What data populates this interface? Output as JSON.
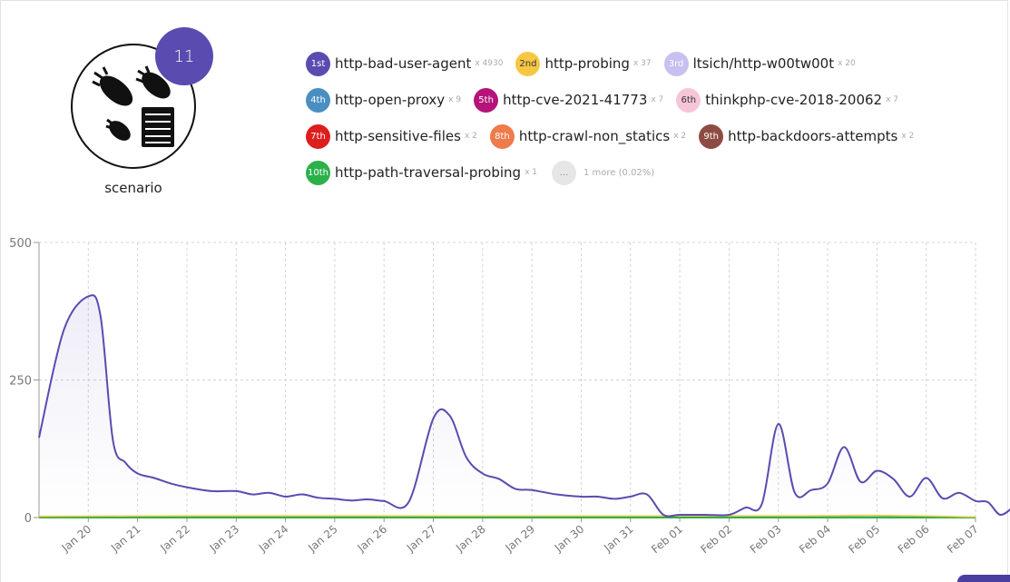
{
  "scenario": {
    "count": "11",
    "label": "scenario",
    "icon": "bombs-and-server-icon"
  },
  "legend": [
    {
      "rank": "1st",
      "name": "http-bad-user-agent",
      "count": "x 4930",
      "color": "#5a4bb0"
    },
    {
      "rank": "2nd",
      "name": "http-probing",
      "count": "x 37",
      "color": "#f7c744"
    },
    {
      "rank": "3rd",
      "name": "ltsich/http-w00tw00t",
      "count": "x 20",
      "color": "#c8c0f0"
    },
    {
      "rank": "4th",
      "name": "http-open-proxy",
      "count": "x 9",
      "color": "#4a8fc2"
    },
    {
      "rank": "5th",
      "name": "http-cve-2021-41773",
      "count": "x 7",
      "color": "#b5137a"
    },
    {
      "rank": "6th",
      "name": "thinkphp-cve-2018-20062",
      "count": "x 7",
      "color": "#f7c5d8"
    },
    {
      "rank": "7th",
      "name": "http-sensitive-files",
      "count": "x 2",
      "color": "#dd1e1e"
    },
    {
      "rank": "8th",
      "name": "http-crawl-non_statics",
      "count": "x 2",
      "color": "#ef7a4a"
    },
    {
      "rank": "9th",
      "name": "http-backdoors-attempts",
      "count": "x 2",
      "color": "#8c4c44"
    },
    {
      "rank": "10th",
      "name": "http-path-traversal-probing",
      "count": "x 1",
      "color": "#2bb14a"
    }
  ],
  "more": {
    "dot": "...",
    "text": "1 more (0.02%)"
  },
  "chart_data": {
    "type": "area",
    "yticks": [
      "500",
      "250",
      "0"
    ],
    "ylim": [
      0,
      500
    ],
    "xlim": [
      "2024-01-19",
      "2024-02-07"
    ],
    "categories": [
      "Jan 20",
      "Jan 21",
      "Jan 22",
      "Jan 23",
      "Jan 24",
      "Jan 25",
      "Jan 26",
      "Jan 27",
      "Jan 28",
      "Jan 29",
      "Jan 30",
      "Jan 31",
      "Feb 01",
      "Feb 02",
      "Feb 03",
      "Feb 04",
      "Feb 05",
      "Feb 06",
      "Feb 07"
    ],
    "grid": true,
    "series": [
      {
        "name": "http-bad-user-agent",
        "color": "#5a4bb0",
        "points": [
          [
            "2024-01-19",
            145
          ],
          [
            "2024-01-19",
            340
          ],
          [
            "2024-01-20",
            402
          ],
          [
            "2024-01-20",
            365
          ],
          [
            "2024-01-20",
            140
          ],
          [
            "2024-01-20",
            100
          ],
          [
            "2024-01-21",
            80
          ],
          [
            "2024-01-21",
            72
          ],
          [
            "2024-01-21",
            62
          ],
          [
            "2024-01-22",
            55
          ],
          [
            "2024-01-22",
            48
          ],
          [
            "2024-01-23",
            48
          ],
          [
            "2024-01-23",
            42
          ],
          [
            "2024-01-23",
            45
          ],
          [
            "2024-01-24",
            38
          ],
          [
            "2024-01-24",
            42
          ],
          [
            "2024-01-24",
            36
          ],
          [
            "2024-01-25",
            34
          ],
          [
            "2024-01-25",
            31
          ],
          [
            "2024-01-25",
            33
          ],
          [
            "2024-01-26",
            30
          ],
          [
            "2024-01-26",
            28
          ],
          [
            "2024-01-27",
            180
          ],
          [
            "2024-01-27",
            185
          ],
          [
            "2024-01-27",
            110
          ],
          [
            "2024-01-28",
            80
          ],
          [
            "2024-01-28",
            70
          ],
          [
            "2024-01-28",
            52
          ],
          [
            "2024-01-29",
            50
          ],
          [
            "2024-01-29",
            42
          ],
          [
            "2024-01-30",
            38
          ],
          [
            "2024-01-30",
            38
          ],
          [
            "2024-01-30",
            34
          ],
          [
            "2024-01-31",
            38
          ],
          [
            "2024-01-31",
            42
          ],
          [
            "2024-01-31",
            5
          ],
          [
            "2024-02-01",
            5
          ],
          [
            "2024-02-01",
            5
          ],
          [
            "2024-02-02",
            5
          ],
          [
            "2024-02-02",
            18
          ],
          [
            "2024-02-02",
            25
          ],
          [
            "2024-02-03",
            170
          ],
          [
            "2024-02-03",
            45
          ],
          [
            "2024-02-03",
            50
          ],
          [
            "2024-02-04",
            62
          ],
          [
            "2024-02-04",
            128
          ],
          [
            "2024-02-04",
            65
          ],
          [
            "2024-02-05",
            85
          ],
          [
            "2024-02-05",
            70
          ],
          [
            "2024-02-05",
            38
          ],
          [
            "2024-02-06",
            72
          ],
          [
            "2024-02-06",
            35
          ],
          [
            "2024-02-06",
            45
          ],
          [
            "2024-02-07",
            30
          ],
          [
            "2024-02-07",
            28
          ],
          [
            "2024-02-07",
            5
          ],
          [
            "2024-02-07",
            18
          ]
        ]
      },
      {
        "name": "http-probing",
        "color": "#f7c744",
        "points": [
          [
            "2024-01-19",
            2
          ],
          [
            "2024-01-22",
            3
          ],
          [
            "2024-01-25",
            3
          ],
          [
            "2024-02-03",
            3
          ],
          [
            "2024-02-05",
            4
          ],
          [
            "2024-02-07",
            1
          ]
        ]
      },
      {
        "name": "http-path-traversal-probing",
        "color": "#2bb14a",
        "points": [
          [
            "2024-01-19",
            1
          ],
          [
            "2024-02-07",
            1
          ]
        ]
      }
    ]
  }
}
